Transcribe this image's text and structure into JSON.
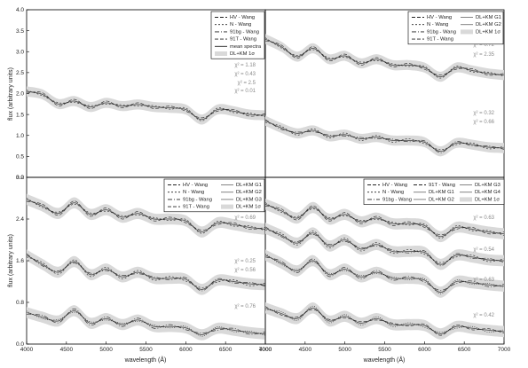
{
  "figure": {
    "ylabel_top": "flux (arbitrary units)",
    "ylabel_bottom": "flux (arbitrary units)",
    "xlabel": "wavelength (Å)"
  },
  "panels": [
    {
      "id": "top-left",
      "legend": [
        "HV - Wang",
        "N - Wang",
        "91bg - Wang",
        "91T - Wang",
        "mean spectra",
        "DL+KM 1σ"
      ],
      "yticks": [
        "0.0",
        "0.5",
        "1.0",
        "1.5",
        "2.0",
        "2.5",
        "3.0",
        "3.5",
        "4.0"
      ],
      "chi": [
        "χ² = 1.18",
        "χ² = 0.43",
        "χ² = 2.5",
        "χ² = 0.01"
      ]
    },
    {
      "id": "top-right",
      "legend": [
        "HV - Wang",
        "N - Wang",
        "91bg - Wang",
        "91T - Wang",
        "DL+KM G1",
        "DL+KM G2",
        "DL+KM 1σ"
      ],
      "chi": [
        "χ² = 0.72",
        "χ² = 2.35",
        "χ² = 0.32",
        "χ² = 0.66"
      ]
    },
    {
      "id": "bottom-left",
      "legend": [
        "HV - Wang",
        "N - Wang",
        "91bg - Wang",
        "91T - Wang",
        "DL+KM G1",
        "DL+KM G2",
        "DL+KM G3",
        "DL+KM 1σ"
      ],
      "yticks": [
        "0.0",
        "0.8",
        "1.6",
        "2.4",
        "3.2"
      ],
      "xticks": [
        "4000",
        "4500",
        "5000",
        "5500",
        "6000",
        "6500",
        "7000"
      ],
      "chi": [
        "χ² = 0.69",
        "χ² = 0.25",
        "χ² = 0.56",
        "χ² = 0.76"
      ]
    },
    {
      "id": "bottom-right",
      "legend": [
        "HV - Wang",
        "N - Wang",
        "91bg - Wang",
        "91T - Wang",
        "DL+KM G1",
        "DL+KM G2",
        "DL+KM G3",
        "DL+KM G4",
        "DL+KM 1σ"
      ],
      "xticks": [
        "4000",
        "4500",
        "5000",
        "5500",
        "6000",
        "6500",
        "7000"
      ],
      "chi": [
        "χ² = 0.63",
        "χ² = 0.54",
        "χ² = 0.63",
        "χ² = 0.42"
      ]
    }
  ],
  "chart_data": {
    "type": "line",
    "xlabel": "wavelength (Å)",
    "ylabel": "flux (arbitrary units)",
    "xlim": [
      4000,
      7000
    ],
    "x": [
      4000,
      4200,
      4400,
      4600,
      4800,
      5000,
      5200,
      5400,
      5600,
      5800,
      6000,
      6200,
      6400,
      6600,
      6800,
      7000
    ],
    "panels": [
      {
        "name": "top-left",
        "ylim": [
          0,
          4
        ],
        "series": [
          {
            "name": "mean spectra",
            "values": [
              2.05,
              1.98,
              1.75,
              1.82,
              1.68,
              1.78,
              1.7,
              1.74,
              1.68,
              1.66,
              1.62,
              1.38,
              1.62,
              1.58,
              1.5,
              1.48
            ]
          }
        ]
      },
      {
        "name": "top-right",
        "ylim": [
          0,
          4
        ],
        "series": [
          {
            "name": "DL+KM G1",
            "values": [
              3.3,
              3.12,
              2.88,
              3.08,
              2.82,
              2.9,
              2.72,
              2.82,
              2.68,
              2.68,
              2.62,
              2.4,
              2.62,
              2.55,
              2.48,
              2.44
            ]
          },
          {
            "name": "DL+KM G2",
            "values": [
              1.35,
              1.18,
              1.05,
              1.12,
              0.98,
              1.02,
              0.92,
              0.96,
              0.88,
              0.88,
              0.84,
              0.62,
              0.82,
              0.78,
              0.72,
              0.7
            ]
          }
        ]
      },
      {
        "name": "bottom-left",
        "ylim": [
          0,
          3.6
        ],
        "series": [
          {
            "name": "DL+KM G1",
            "values": [
              3.12,
              2.98,
              2.82,
              3.05,
              2.8,
              2.9,
              2.74,
              2.82,
              2.7,
              2.7,
              2.66,
              2.42,
              2.62,
              2.58,
              2.52,
              2.48
            ]
          },
          {
            "name": "DL+KM G2",
            "values": [
              1.92,
              1.72,
              1.55,
              1.78,
              1.5,
              1.62,
              1.45,
              1.55,
              1.42,
              1.42,
              1.4,
              1.18,
              1.38,
              1.35,
              1.3,
              1.28
            ]
          },
          {
            "name": "DL+KM G3",
            "values": [
              0.68,
              0.58,
              0.5,
              0.72,
              0.45,
              0.55,
              0.42,
              0.52,
              0.38,
              0.38,
              0.35,
              0.2,
              0.34,
              0.3,
              0.25,
              0.22
            ]
          }
        ]
      },
      {
        "name": "bottom-right",
        "ylim": [
          0,
          3.6
        ],
        "series": [
          {
            "name": "DL+KM G1",
            "values": [
              3.02,
              2.88,
              2.72,
              2.95,
              2.7,
              2.8,
              2.64,
              2.72,
              2.6,
              2.6,
              2.56,
              2.32,
              2.52,
              2.48,
              2.42,
              2.38
            ]
          },
          {
            "name": "DL+KM G2",
            "values": [
              2.5,
              2.35,
              2.18,
              2.4,
              2.12,
              2.25,
              2.05,
              2.15,
              2.0,
              2.0,
              1.98,
              1.72,
              1.92,
              1.88,
              1.82,
              1.8
            ]
          },
          {
            "name": "DL+KM G3",
            "values": [
              1.92,
              1.75,
              1.58,
              1.8,
              1.5,
              1.62,
              1.45,
              1.55,
              1.42,
              1.42,
              1.38,
              1.12,
              1.35,
              1.32,
              1.28,
              1.25
            ]
          },
          {
            "name": "DL+KM G4",
            "values": [
              0.78,
              0.66,
              0.55,
              0.78,
              0.5,
              0.6,
              0.45,
              0.55,
              0.42,
              0.42,
              0.4,
              0.22,
              0.38,
              0.34,
              0.3,
              0.27
            ]
          }
        ]
      }
    ]
  }
}
